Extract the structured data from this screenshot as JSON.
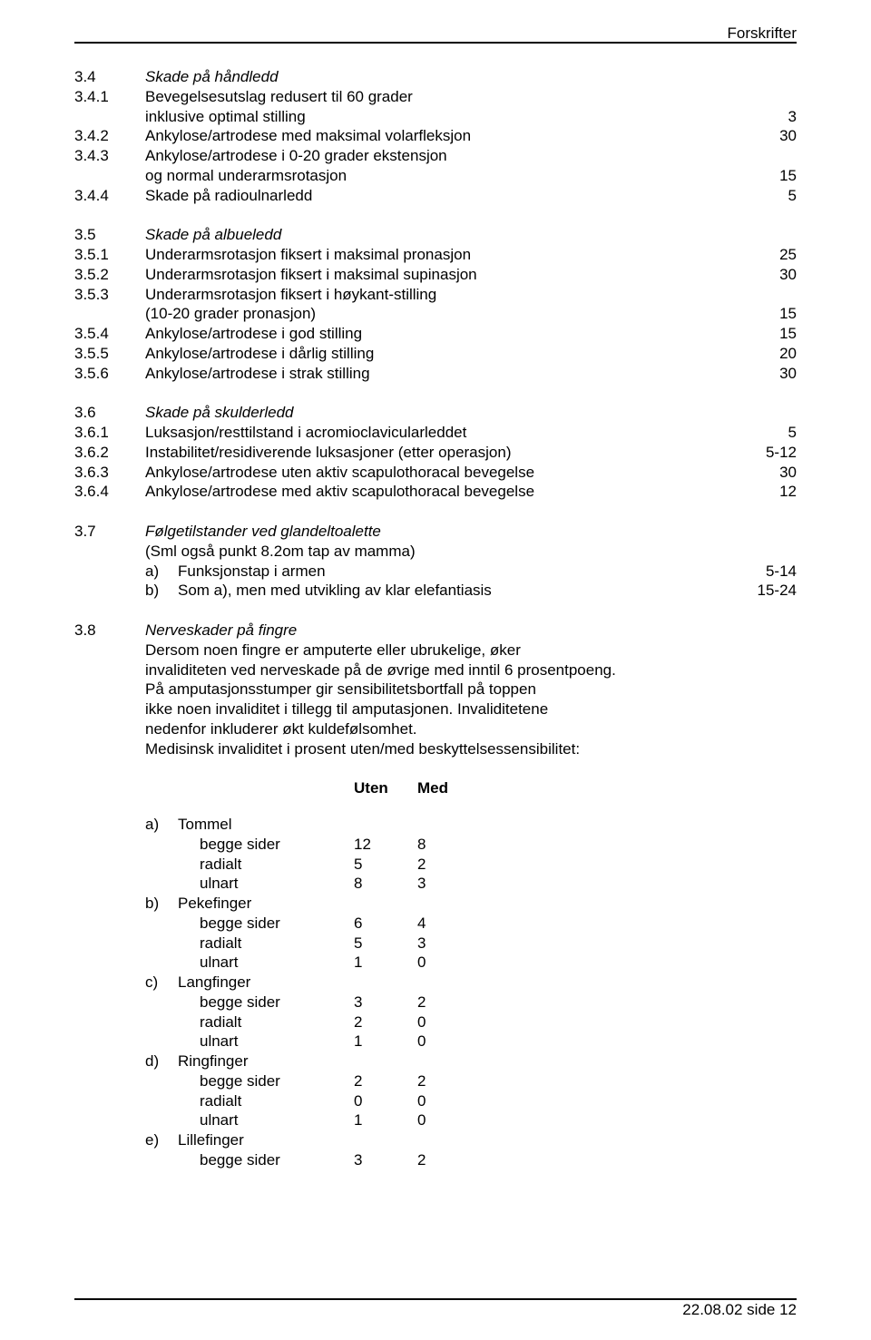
{
  "header": {
    "right": "Forskrifter"
  },
  "footer": {
    "right": "22.08.02  side 12"
  },
  "sections": {
    "s34": {
      "num": "3.4",
      "title": "Skade på håndledd"
    },
    "s341": {
      "num": "3.4.1",
      "text1": "Bevegelsesutslag redusert til 60 grader",
      "text2": "inklusive optimal stilling",
      "val": "3"
    },
    "s342": {
      "num": "3.4.2",
      "text": "Ankylose/artrodese med maksimal volarfleksjon",
      "val": "30"
    },
    "s343": {
      "num": "3.4.3",
      "text1": "Ankylose/artrodese i 0-20 grader ekstensjon",
      "text2": "og normal underarmsrotasjon",
      "val": "15"
    },
    "s344": {
      "num": "3.4.4",
      "text": "Skade på radioulnarledd",
      "val": "5"
    },
    "s35": {
      "num": "3.5",
      "title": "Skade på albueledd"
    },
    "s351": {
      "num": "3.5.1",
      "text": "Underarmsrotasjon fiksert i maksimal pronasjon",
      "val": "25"
    },
    "s352": {
      "num": "3.5.2",
      "text": "Underarmsrotasjon fiksert i maksimal supinasjon",
      "val": "30"
    },
    "s353": {
      "num": "3.5.3",
      "text1": "Underarmsrotasjon fiksert i høykant-stilling",
      "text2": "(10-20 grader pronasjon)",
      "val": "15"
    },
    "s354": {
      "num": "3.5.4",
      "text": "Ankylose/artrodese i god stilling",
      "val": "15"
    },
    "s355": {
      "num": "3.5.5",
      "text": "Ankylose/artrodese i dårlig stilling",
      "val": "20"
    },
    "s356": {
      "num": "3.5.6",
      "text": "Ankylose/artrodese i strak stilling",
      "val": "30"
    },
    "s36": {
      "num": "3.6",
      "title": "Skade på skulderledd"
    },
    "s361": {
      "num": "3.6.1",
      "text": "Luksasjon/resttilstand i acromioclavicularleddet",
      "val": "5"
    },
    "s362": {
      "num": "3.6.2",
      "text": "Instabilitet/residiverende luksasjoner (etter operasjon)",
      "val": "5-12"
    },
    "s363": {
      "num": "3.6.3",
      "text": "Ankylose/artrodese uten aktiv scapulothoracal bevegelse",
      "val": "30"
    },
    "s364": {
      "num": "3.6.4",
      "text": "Ankylose/artrodese med aktiv scapulothoracal bevegelse",
      "val": "12"
    },
    "s37": {
      "num": "3.7",
      "title": "Følgetilstander ved glandeltoalette",
      "line2": "(Sml også punkt 8.2om tap av mamma)",
      "a_lbl": "a)",
      "a_txt": "Funksjonstap i armen",
      "a_val": "5-14",
      "b_lbl": "b)",
      "b_txt": "Som a), men med utvikling av klar elefantiasis",
      "b_val": "15-24"
    },
    "s38": {
      "num": "3.8",
      "title": "Nerveskader på fingre",
      "p1": "Dersom noen fingre er amputerte eller ubrukelige, øker",
      "p2": "invaliditeten ved nerveskade på de øvrige med inntil 6 prosentpoeng.",
      "p3": "På amputasjonsstumper gir sensibilitetsbortfall på toppen",
      "p4": "ikke noen invaliditet i tillegg til amputasjonen. Invaliditetene",
      "p5": "nedenfor inkluderer økt kuldefølsomhet.",
      "p6": "Medisinsk invaliditet i prosent uten/med beskyttelsessensibilitet:",
      "col1": "Uten",
      "col2": "Med"
    }
  },
  "table": {
    "groups": [
      {
        "lbl": "a)",
        "name": "Tommel",
        "rows": [
          {
            "name": "begge sider",
            "u": "12",
            "m": "8"
          },
          {
            "name": "radialt",
            "u": "5",
            "m": "2"
          },
          {
            "name": "ulnart",
            "u": "8",
            "m": "3"
          }
        ]
      },
      {
        "lbl": "b)",
        "name": "Pekefinger",
        "rows": [
          {
            "name": "begge sider",
            "u": "6",
            "m": "4"
          },
          {
            "name": "radialt",
            "u": "5",
            "m": "3"
          },
          {
            "name": "ulnart",
            "u": "1",
            "m": "0"
          }
        ]
      },
      {
        "lbl": "c)",
        "name": "Langfinger",
        "rows": [
          {
            "name": "begge sider",
            "u": "3",
            "m": "2"
          },
          {
            "name": "radialt",
            "u": "2",
            "m": "0"
          },
          {
            "name": "ulnart",
            "u": "1",
            "m": "0"
          }
        ]
      },
      {
        "lbl": "d)",
        "name": "Ringfinger",
        "rows": [
          {
            "name": "begge sider",
            "u": "2",
            "m": "2"
          },
          {
            "name": "radialt",
            "u": "0",
            "m": "0"
          },
          {
            "name": "ulnart",
            "u": "1",
            "m": "0"
          }
        ]
      },
      {
        "lbl": "e)",
        "name": "Lillefinger",
        "rows": [
          {
            "name": "begge sider",
            "u": "3",
            "m": "2"
          }
        ]
      }
    ]
  }
}
